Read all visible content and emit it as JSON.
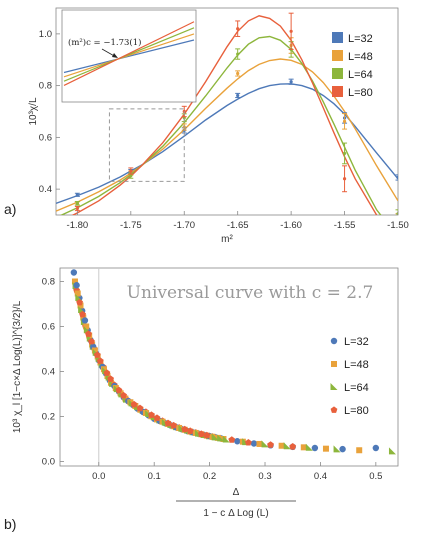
{
  "chart_data": [
    {
      "type": "line",
      "panel_label": "a)",
      "xlabel": "m²",
      "ylabel": "10³χ/L",
      "xlim": [
        -1.82,
        -1.5
      ],
      "ylim": [
        0.3,
        1.1
      ],
      "xticks": [
        -1.8,
        -1.75,
        -1.7,
        -1.65,
        -1.6,
        -1.55,
        -1.5
      ],
      "xtick_labels": [
        "-1.80",
        "-1.75",
        "-1.70",
        "-1.65",
        "-1.60",
        "-1.55",
        "-1.50"
      ],
      "yticks": [
        0.4,
        0.6,
        0.8,
        1.0
      ],
      "ytick_labels": [
        "0.4",
        "0.6",
        "0.8",
        "1.0"
      ],
      "grid": false,
      "legend_position": "right",
      "series": [
        {
          "name": "L=32",
          "color": "#4e79b8",
          "curve_x": [
            -1.82,
            -1.8,
            -1.78,
            -1.76,
            -1.75,
            -1.74,
            -1.72,
            -1.7,
            -1.68,
            -1.66,
            -1.65,
            -1.64,
            -1.63,
            -1.62,
            -1.61,
            -1.6,
            -1.59,
            -1.58,
            -1.57,
            -1.56,
            -1.55,
            -1.54,
            -1.52,
            -1.5
          ],
          "curve_y": [
            0.345,
            0.375,
            0.408,
            0.447,
            0.47,
            0.493,
            0.545,
            0.605,
            0.667,
            0.723,
            0.748,
            0.77,
            0.788,
            0.8,
            0.806,
            0.807,
            0.8,
            0.786,
            0.762,
            0.73,
            0.69,
            0.642,
            0.54,
            0.44
          ],
          "points_x": [
            -1.8,
            -1.75,
            -1.7,
            -1.65,
            -1.6,
            -1.55,
            -1.5
          ],
          "points_y": [
            0.378,
            0.468,
            0.627,
            0.762,
            0.815,
            0.675,
            0.445
          ],
          "errors": [
            0.006,
            0.008,
            0.01,
            0.008,
            0.01,
            0.02,
            0.01
          ]
        },
        {
          "name": "L=48",
          "color": "#e9a23b",
          "curve_x": [
            -1.82,
            -1.8,
            -1.78,
            -1.76,
            -1.75,
            -1.74,
            -1.72,
            -1.7,
            -1.68,
            -1.66,
            -1.65,
            -1.64,
            -1.63,
            -1.62,
            -1.61,
            -1.6,
            -1.59,
            -1.58,
            -1.57,
            -1.56,
            -1.55,
            -1.54,
            -1.52,
            -1.5
          ],
          "curve_y": [
            0.315,
            0.35,
            0.39,
            0.435,
            0.462,
            0.491,
            0.555,
            0.63,
            0.712,
            0.79,
            0.826,
            0.858,
            0.882,
            0.897,
            0.903,
            0.898,
            0.882,
            0.853,
            0.812,
            0.76,
            0.7,
            0.633,
            0.49,
            0.355
          ],
          "points_x": [
            -1.8,
            -1.75,
            -1.7,
            -1.65,
            -1.6,
            -1.55,
            -1.5
          ],
          "points_y": [
            0.345,
            0.462,
            0.64,
            0.847,
            0.955,
            0.662,
            0.29
          ],
          "errors": [
            0.006,
            0.008,
            0.012,
            0.01,
            0.03,
            0.03,
            0.015
          ]
        },
        {
          "name": "L=64",
          "color": "#8db63c",
          "curve_x": [
            -1.82,
            -1.8,
            -1.78,
            -1.76,
            -1.75,
            -1.74,
            -1.72,
            -1.7,
            -1.68,
            -1.66,
            -1.65,
            -1.64,
            -1.63,
            -1.62,
            -1.61,
            -1.6,
            -1.59,
            -1.58,
            -1.57,
            -1.56,
            -1.55,
            -1.54,
            -1.52,
            -1.5
          ],
          "curve_y": [
            0.29,
            0.328,
            0.372,
            0.425,
            0.456,
            0.49,
            0.566,
            0.657,
            0.76,
            0.868,
            0.918,
            0.96,
            0.985,
            0.99,
            0.975,
            0.94,
            0.886,
            0.818,
            0.738,
            0.652,
            0.562,
            0.473,
            0.32,
            0.215
          ],
          "points_x": [
            -1.8,
            -1.75,
            -1.7,
            -1.65,
            -1.6,
            -1.55,
            -1.5
          ],
          "points_y": [
            0.345,
            0.452,
            0.676,
            0.922,
            0.94,
            0.538,
            0.305
          ],
          "errors": [
            0.007,
            0.01,
            0.015,
            0.02,
            0.03,
            0.04,
            0.015
          ]
        },
        {
          "name": "L=80",
          "color": "#e8603c",
          "curve_x": [
            -1.82,
            -1.8,
            -1.78,
            -1.76,
            -1.75,
            -1.74,
            -1.72,
            -1.7,
            -1.68,
            -1.66,
            -1.65,
            -1.64,
            -1.63,
            -1.62,
            -1.61,
            -1.6,
            -1.59,
            -1.58,
            -1.57,
            -1.56,
            -1.55,
            -1.54,
            -1.52,
            -1.5
          ],
          "curve_y": [
            0.268,
            0.308,
            0.355,
            0.415,
            0.45,
            0.49,
            0.58,
            0.69,
            0.815,
            0.95,
            1.01,
            1.05,
            1.07,
            1.06,
            1.03,
            0.975,
            0.9,
            0.81,
            0.715,
            0.618,
            0.525,
            0.44,
            0.3,
            0.2
          ],
          "points_x": [
            -1.8,
            -1.75,
            -1.7,
            -1.65,
            -1.6,
            -1.55,
            -1.5
          ],
          "points_y": [
            0.325,
            0.47,
            0.7,
            1.02,
            1.01,
            0.44,
            0.25
          ],
          "errors": [
            0.008,
            0.012,
            0.02,
            0.03,
            0.07,
            0.05,
            0.02
          ]
        }
      ],
      "inset": {
        "annotation": "(m²)c = −1.73(1)",
        "zoom_box_x": [
          -1.77,
          -1.7
        ],
        "zoom_box_y": [
          0.43,
          0.71
        ]
      }
    },
    {
      "type": "scatter",
      "panel_label": "b)",
      "title": "Universal curve with c = 2.7",
      "xlabel_numerator": "Δ",
      "xlabel_denominator": "1 − c Δ Log (L)",
      "ylabel": "10³ χ_l [1−c×Δ Log(L)]^{3/2}/L",
      "xlim": [
        -0.07,
        0.54
      ],
      "ylim": [
        -0.02,
        0.86
      ],
      "xticks": [
        0.0,
        0.1,
        0.2,
        0.3,
        0.4,
        0.5
      ],
      "xtick_labels": [
        "0.0",
        "0.1",
        "0.2",
        "0.3",
        "0.4",
        "0.5"
      ],
      "yticks": [
        0.0,
        0.2,
        0.4,
        0.6,
        0.8
      ],
      "ytick_labels": [
        "0.0",
        "0.2",
        "0.4",
        "0.6",
        "0.8"
      ],
      "vline_x": 0.0,
      "legend_position": "right",
      "series": [
        {
          "name": "L=32",
          "marker": "circle",
          "color": "#4e79b8",
          "x": [
            -0.045,
            -0.03,
            -0.015,
            0.0,
            0.02,
            0.045,
            0.07,
            0.1,
            0.13,
            0.16,
            0.19,
            0.22,
            0.25,
            0.28,
            0.31,
            0.35,
            0.39,
            0.44,
            0.5
          ],
          "y": [
            0.84,
            0.67,
            0.54,
            0.45,
            0.36,
            0.285,
            0.235,
            0.19,
            0.16,
            0.135,
            0.118,
            0.103,
            0.09,
            0.08,
            0.072,
            0.065,
            0.06,
            0.055,
            0.06
          ]
        },
        {
          "name": "L=48",
          "marker": "square",
          "color": "#e9a23b",
          "x": [
            -0.043,
            -0.028,
            -0.012,
            0.003,
            0.022,
            0.048,
            0.075,
            0.105,
            0.135,
            0.165,
            0.195,
            0.225,
            0.26,
            0.29,
            0.33,
            0.37,
            0.41,
            0.47
          ],
          "y": [
            0.8,
            0.64,
            0.52,
            0.44,
            0.35,
            0.28,
            0.23,
            0.187,
            0.157,
            0.133,
            0.115,
            0.1,
            0.088,
            0.078,
            0.07,
            0.063,
            0.057,
            0.05
          ]
        },
        {
          "name": "L=64",
          "marker": "triangle",
          "color": "#8db63c",
          "x": [
            -0.041,
            -0.026,
            -0.01,
            0.006,
            0.025,
            0.05,
            0.08,
            0.11,
            0.14,
            0.17,
            0.2,
            0.23,
            0.265,
            0.3,
            0.34,
            0.38,
            0.43,
            0.53
          ],
          "y": [
            0.78,
            0.62,
            0.51,
            0.43,
            0.345,
            0.275,
            0.225,
            0.183,
            0.153,
            0.13,
            0.112,
            0.098,
            0.086,
            0.076,
            0.068,
            0.061,
            0.054,
            0.045
          ]
        },
        {
          "name": "L=80",
          "marker": "pentagon",
          "color": "#e8603c",
          "x": [
            -0.04,
            -0.024,
            -0.008,
            0.008,
            0.028,
            0.053,
            0.085,
            0.115,
            0.145,
            0.175,
            0.205,
            0.24,
            0.27,
            0.31,
            0.35
          ],
          "y": [
            0.76,
            0.6,
            0.5,
            0.42,
            0.34,
            0.27,
            0.22,
            0.18,
            0.15,
            0.128,
            0.11,
            0.096,
            0.084,
            0.074,
            0.066
          ]
        }
      ]
    }
  ]
}
